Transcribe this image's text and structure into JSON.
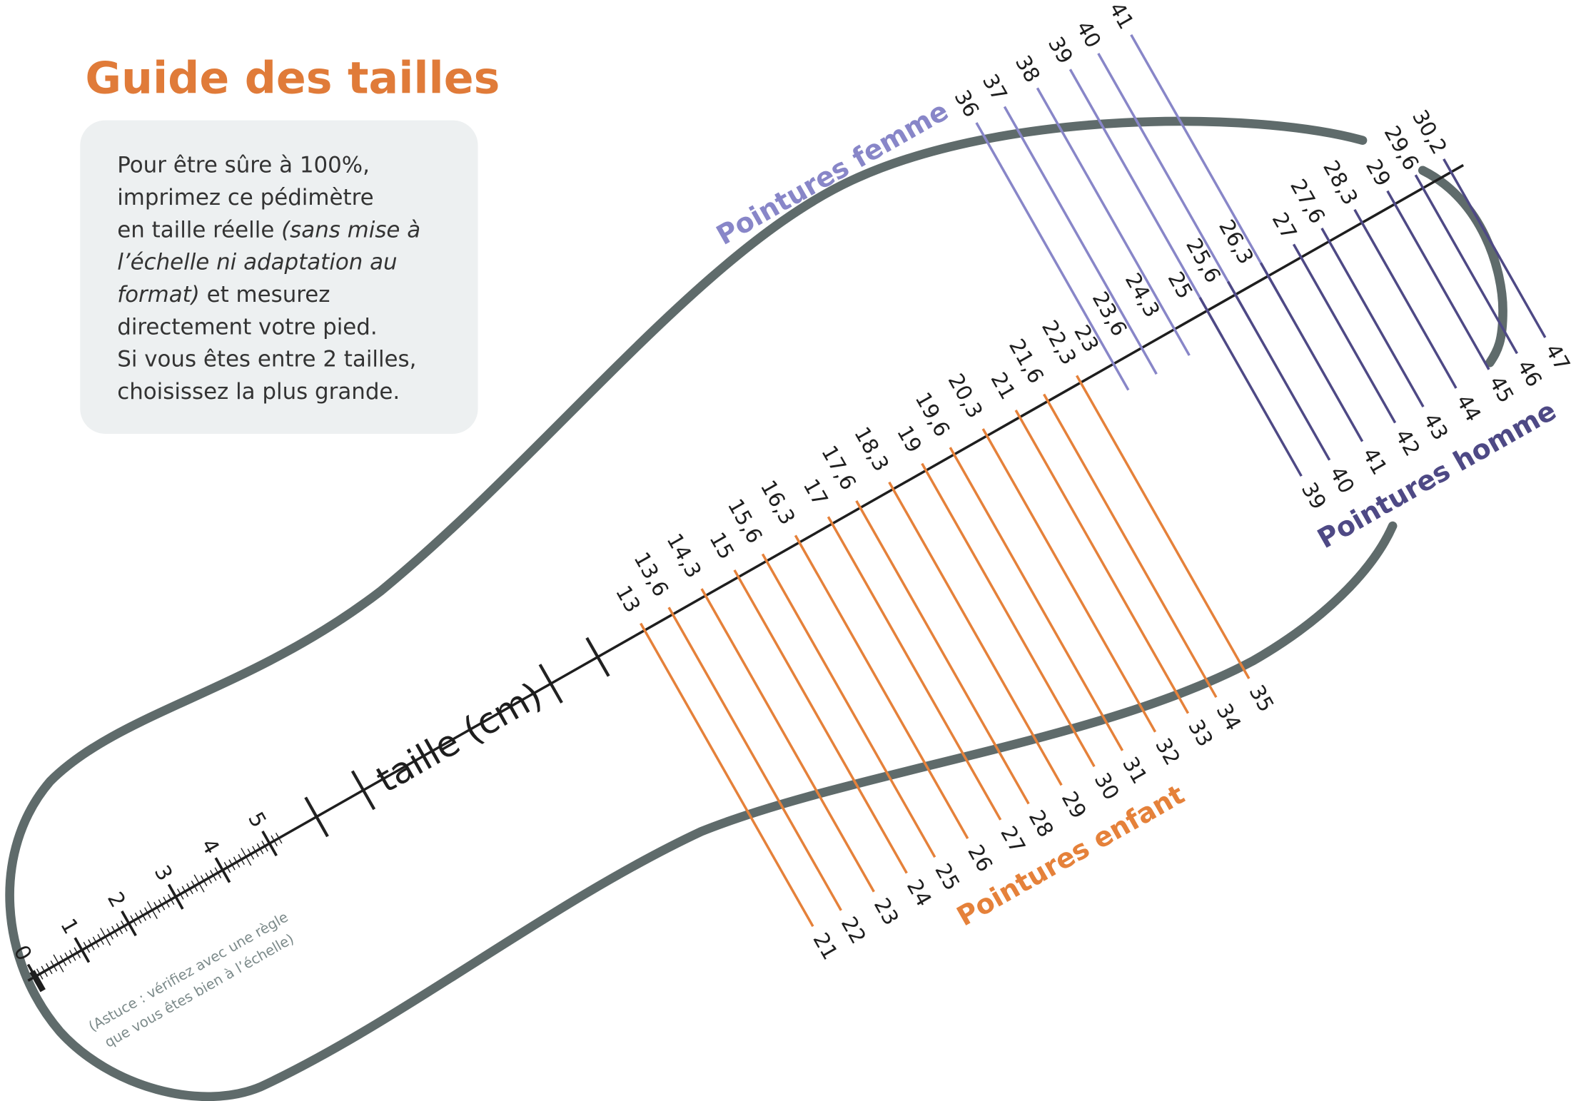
{
  "header": {
    "title": "Guide des tailles"
  },
  "info": {
    "lines": [
      [
        {
          "text": "Pour être sûre à 100%,"
        }
      ],
      [
        {
          "text": "imprimez ce pédimètre"
        }
      ],
      [
        {
          "text": "en taille réelle "
        },
        {
          "text": "(sans mise à",
          "style": "italic"
        }
      ],
      [
        {
          "text": "l’échelle ni adaptation au",
          "style": "italic"
        }
      ],
      [
        {
          "text": "format)",
          "style": "italic"
        },
        {
          "text": " et mesurez"
        }
      ],
      [
        {
          "text": "directement votre pied."
        }
      ],
      [
        {
          "text": "Si vous êtes entre 2 tailles,"
        }
      ],
      [
        {
          "text": "choisissez la plus grande."
        }
      ]
    ]
  },
  "ruler": {
    "title": "taille (cm)",
    "labels": [
      0,
      1,
      2,
      3,
      4,
      5
    ],
    "tip": [
      "(Astuce : vérifiez avec une règle",
      "que vous êtes bien à l’échelle)"
    ]
  },
  "groups": {
    "enfant": {
      "title": "Pointures enfant",
      "color": "#e5813a"
    },
    "femme": {
      "title": "Pointures femme",
      "color": "#8886c8"
    },
    "homme": {
      "title": "Pointures homme",
      "color": "#4e4985"
    }
  },
  "graduations": [
    {
      "cm": 13,
      "enfant": 21
    },
    {
      "cm": {
        "value": 13.6,
        "label": "13,6"
      },
      "enfant": 22
    },
    {
      "cm": {
        "value": 14.3,
        "label": "14,3"
      },
      "enfant": 23
    },
    {
      "cm": 15,
      "enfant": 24
    },
    {
      "cm": {
        "value": 15.6,
        "label": "15,6"
      },
      "enfant": 25
    },
    {
      "cm": {
        "value": 16.3,
        "label": "16,3"
      },
      "enfant": 26
    },
    {
      "cm": 17,
      "enfant": 27
    },
    {
      "cm": {
        "value": 17.6,
        "label": "17,6"
      },
      "enfant": 28
    },
    {
      "cm": {
        "value": 18.3,
        "label": "18,3"
      },
      "enfant": 29
    },
    {
      "cm": 19,
      "enfant": 30
    },
    {
      "cm": {
        "value": 19.6,
        "label": "19,6"
      },
      "enfant": 31
    },
    {
      "cm": {
        "value": 20.3,
        "label": "20,3"
      },
      "enfant": 32
    },
    {
      "cm": 21,
      "enfant": 33
    },
    {
      "cm": {
        "value": 21.6,
        "label": "21,6"
      },
      "enfant": 34
    },
    {
      "cm": {
        "value": 22.3,
        "label": "22,3"
      },
      "enfant": 35
    },
    {
      "cm": 23,
      "femme": 36
    },
    {
      "cm": {
        "value": 23.6,
        "label": "23,6"
      },
      "femme": 37
    },
    {
      "cm": {
        "value": 24.3,
        "label": "24,3"
      },
      "femme": 38
    },
    {
      "cm": 25,
      "femme": 39,
      "homme": 39
    },
    {
      "cm": {
        "value": 25.6,
        "label": "25,6"
      },
      "femme": 40,
      "homme": 40
    },
    {
      "cm": {
        "value": 26.3,
        "label": "26,3"
      },
      "femme": 41,
      "homme": 41
    },
    {
      "cm": 27,
      "homme": 42
    },
    {
      "cm": {
        "value": 27.6,
        "label": "27,6"
      },
      "homme": 43
    },
    {
      "cm": {
        "value": 28.3,
        "label": "28,3"
      },
      "homme": 44
    },
    {
      "cm": 29,
      "homme": 45
    },
    {
      "cm": {
        "value": 29.6,
        "label": "29,6"
      },
      "homme": 46
    },
    {
      "cm": {
        "value": 30.2,
        "label": "30,2"
      },
      "homme": 47
    }
  ]
}
